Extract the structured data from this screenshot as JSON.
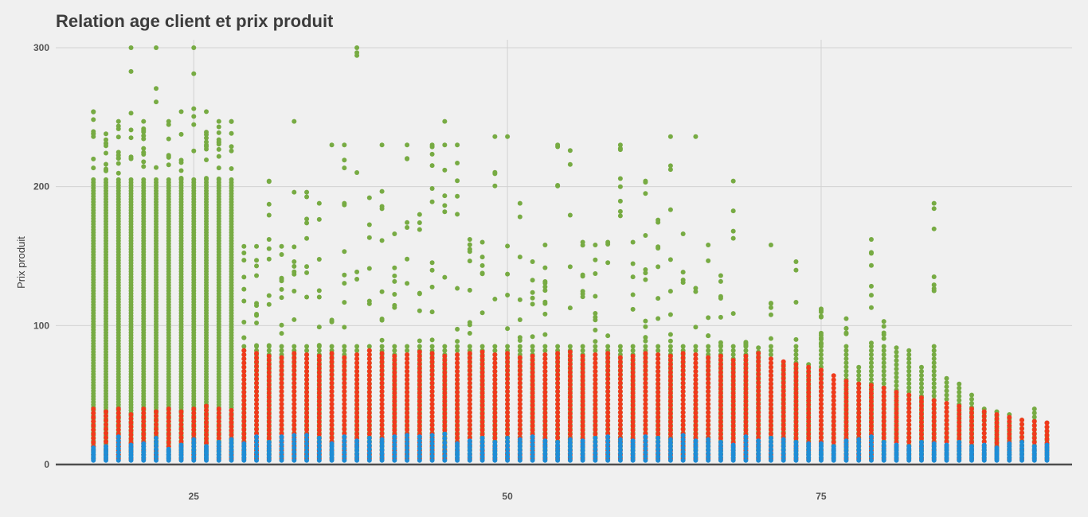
{
  "chart_data": {
    "type": "scatter",
    "title": "Relation age client et prix produit",
    "xlabel": "",
    "ylabel": "Prix produit",
    "xlim": [
      14,
      95
    ],
    "ylim": [
      0,
      300
    ],
    "x_ticks": [
      {
        "value": 25,
        "label": "25"
      },
      {
        "value": 50,
        "label": "50"
      },
      {
        "value": 75,
        "label": "75"
      }
    ],
    "y_ticks": [
      {
        "value": 0,
        "label": "0"
      },
      {
        "value": 100,
        "label": "100"
      },
      {
        "value": 200,
        "label": "200"
      },
      {
        "value": 300,
        "label": "300"
      }
    ],
    "grid": true,
    "legend": "none",
    "x_values": [
      17,
      18,
      19,
      20,
      21,
      22,
      23,
      24,
      25,
      26,
      27,
      28,
      29,
      30,
      31,
      32,
      33,
      34,
      35,
      36,
      37,
      38,
      39,
      40,
      41,
      42,
      43,
      44,
      45,
      46,
      47,
      48,
      49,
      50,
      51,
      52,
      53,
      54,
      55,
      56,
      57,
      58,
      59,
      60,
      61,
      62,
      63,
      64,
      65,
      66,
      67,
      68,
      69,
      70,
      71,
      72,
      73,
      74,
      75,
      76,
      77,
      78,
      79,
      80,
      81,
      82,
      83,
      84,
      85,
      86,
      87,
      88,
      89,
      90,
      91,
      92,
      93
    ],
    "series": [
      {
        "color": "#1f8dd6",
        "y_range": [
          3,
          22
        ],
        "y_max_by_age": [
          12,
          13,
          20,
          14,
          15,
          19,
          11,
          14,
          18,
          13,
          16,
          18,
          15,
          20,
          16,
          20,
          21,
          21,
          19,
          15,
          20,
          17,
          19,
          18,
          20,
          21,
          20,
          21,
          22,
          15,
          17,
          19,
          16,
          19,
          18,
          20,
          17,
          16,
          18,
          17,
          19,
          20,
          18,
          17,
          20,
          19,
          18,
          21,
          17,
          18,
          16,
          14,
          20,
          17,
          19,
          18,
          16,
          15,
          15,
          13,
          17,
          18,
          20,
          16,
          14,
          13,
          16,
          15,
          14,
          16,
          13,
          14,
          12,
          15,
          16,
          13,
          14
        ]
      },
      {
        "color": "#f03a1c",
        "y_range": [
          4,
          82
        ],
        "y_max_by_age": [
          40,
          38,
          40,
          36,
          40,
          38,
          40,
          38,
          40,
          42,
          40,
          39,
          82,
          80,
          78,
          77,
          80,
          79,
          78,
          80,
          77,
          79,
          82,
          80,
          78,
          79,
          81,
          80,
          78,
          79,
          80,
          81,
          79,
          80,
          77,
          78,
          79,
          80,
          81,
          78,
          79,
          80,
          77,
          78,
          80,
          79,
          78,
          80,
          79,
          77,
          78,
          75,
          78,
          80,
          76,
          74,
          72,
          70,
          68,
          64,
          60,
          58,
          57,
          55,
          52,
          50,
          48,
          46,
          44,
          42,
          40,
          38,
          36,
          34,
          32,
          31,
          30
        ]
      },
      {
        "color": "#77ab43",
        "y_range": [
          5,
          300
        ],
        "y_max_by_age": [
          254,
          238,
          247,
          300,
          247,
          300,
          247,
          254,
          300,
          254,
          247,
          247,
          157,
          157,
          204,
          157,
          247,
          196,
          188,
          230,
          230,
          300,
          192,
          230,
          166,
          230,
          180,
          230,
          247,
          230,
          162,
          160,
          236,
          236,
          188,
          146,
          158,
          230,
          226,
          160,
          158,
          160,
          230,
          160,
          204,
          176,
          236,
          166,
          236,
          158,
          136,
          204,
          88,
          84,
          158,
          72,
          146,
          72,
          112,
          52,
          105,
          70,
          162,
          103,
          84,
          82,
          70,
          188,
          62,
          58,
          50,
          40,
          38,
          36,
          32,
          40,
          30
        ]
      }
    ]
  }
}
